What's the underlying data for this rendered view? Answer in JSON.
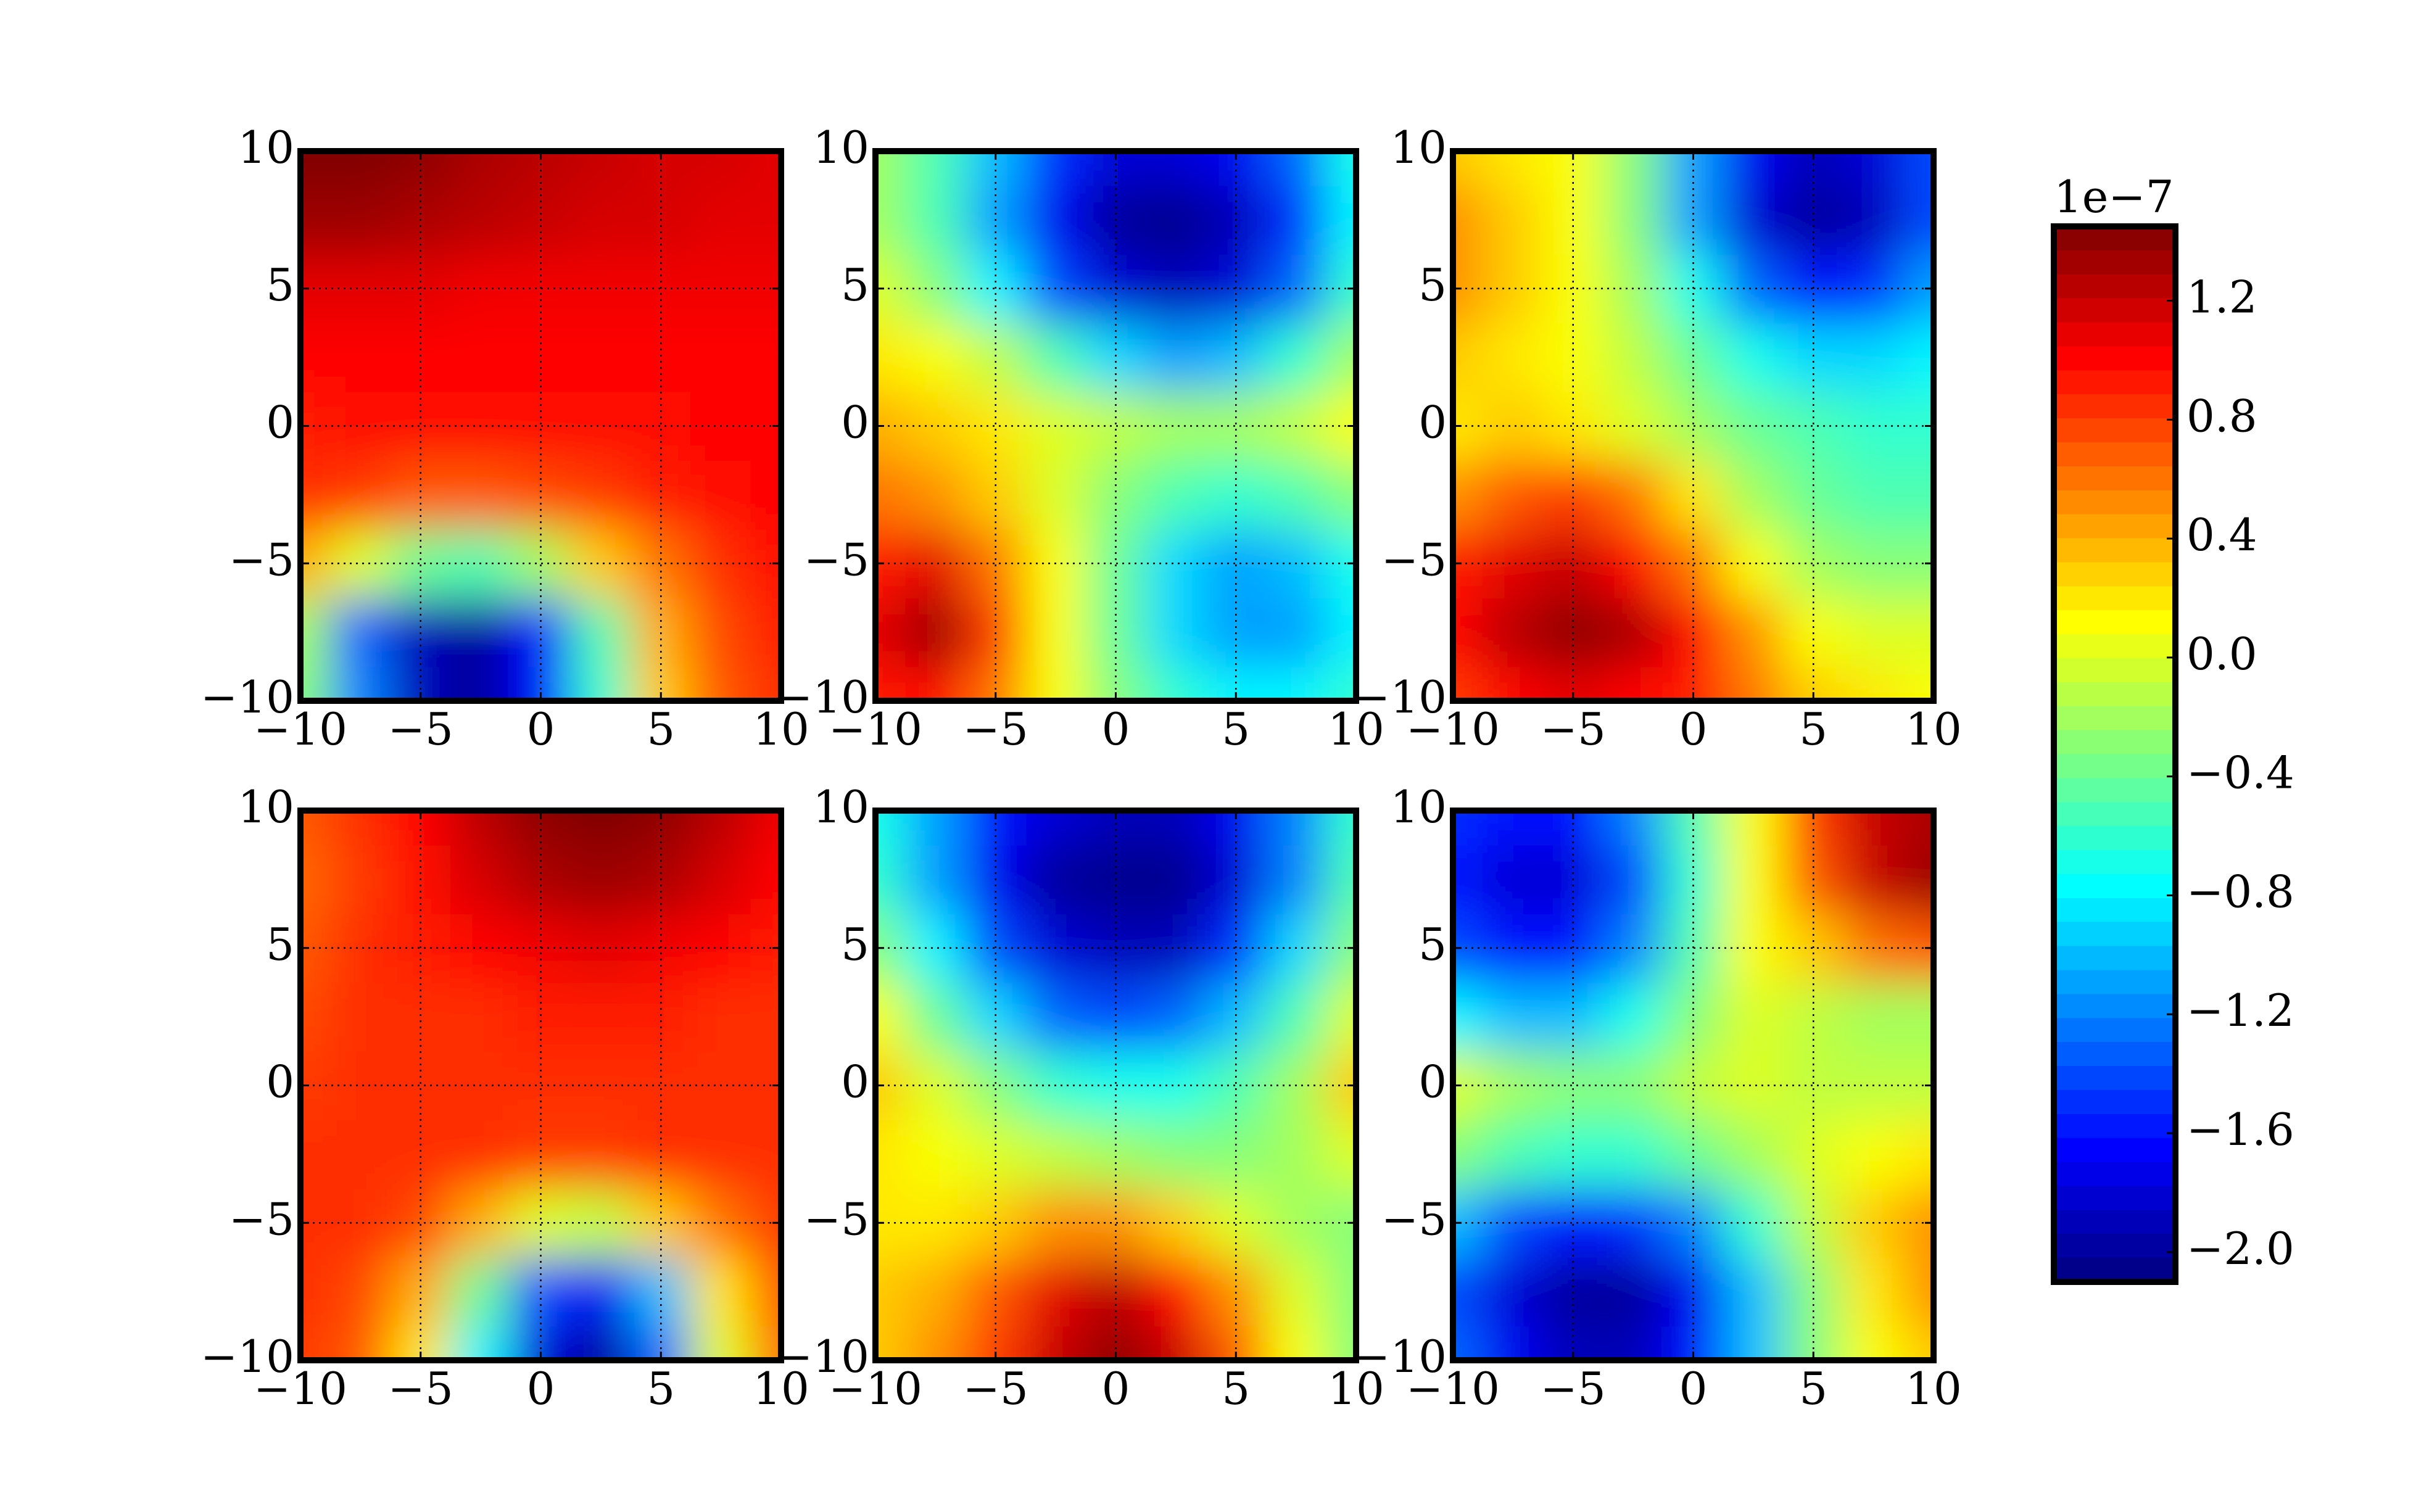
{
  "chart_data": [
    {
      "type": "contour",
      "colormap": "jet",
      "grid": true,
      "x": [
        -10,
        -7.5,
        -5,
        -2.5,
        0,
        2.5,
        5,
        7.5,
        10
      ],
      "y": [
        -10,
        -7.5,
        -5,
        -2.5,
        0,
        2.5,
        5,
        7.5,
        10
      ],
      "z": [
        [
          -0.3,
          -1.2,
          -1.9,
          -2.0,
          -1.6,
          -0.6,
          0.3,
          0.7,
          0.85
        ],
        [
          -0.2,
          -1.3,
          -1.9,
          -2.0,
          -1.6,
          -0.5,
          0.4,
          0.75,
          0.9
        ],
        [
          0.4,
          0.0,
          -0.4,
          -0.5,
          -0.2,
          0.3,
          0.6,
          0.85,
          0.95
        ],
        [
          0.85,
          0.8,
          0.7,
          0.7,
          0.75,
          0.8,
          0.9,
          0.95,
          1.0
        ],
        [
          0.9,
          0.95,
          0.95,
          0.95,
          0.95,
          0.95,
          0.95,
          1.0,
          1.0
        ],
        [
          1.0,
          1.0,
          1.0,
          1.0,
          1.0,
          1.0,
          1.0,
          1.0,
          1.0
        ],
        [
          1.1,
          1.1,
          1.1,
          1.05,
          1.05,
          1.05,
          1.05,
          1.05,
          1.05
        ],
        [
          1.35,
          1.35,
          1.3,
          1.25,
          1.2,
          1.15,
          1.15,
          1.1,
          1.1
        ],
        [
          1.45,
          1.45,
          1.4,
          1.3,
          1.25,
          1.2,
          1.15,
          1.15,
          1.1
        ]
      ],
      "xlim": [
        -10,
        10
      ],
      "ylim": [
        -10,
        10
      ],
      "xticks": [
        {
          "value": -10,
          "label": "−10"
        },
        {
          "value": -5,
          "label": "−5"
        },
        0,
        5,
        10
      ],
      "yticks": [
        {
          "value": -10,
          "label": "−10"
        },
        {
          "value": -5,
          "label": "−5"
        },
        0,
        5,
        10
      ]
    },
    {
      "type": "contour",
      "colormap": "jet",
      "grid": true,
      "x": [
        -10,
        -7.5,
        -5,
        -2.5,
        0,
        2.5,
        5,
        7.5,
        10
      ],
      "y": [
        -10,
        -7.5,
        -5,
        -2.5,
        0,
        2.5,
        5,
        7.5,
        10
      ],
      "z": [
        [
          0.9,
          1.0,
          0.6,
          0.1,
          -0.3,
          -0.6,
          -0.8,
          -0.8,
          -0.6
        ],
        [
          1.1,
          1.35,
          0.8,
          0.1,
          -0.4,
          -0.9,
          -1.1,
          -1.1,
          -0.8
        ],
        [
          0.9,
          1.1,
          0.6,
          0.1,
          -0.4,
          -0.9,
          -1.1,
          -1.0,
          -0.7
        ],
        [
          0.6,
          0.5,
          0.3,
          0.0,
          -0.3,
          -0.5,
          -0.6,
          -0.5,
          -0.3
        ],
        [
          0.4,
          0.3,
          0.2,
          0.0,
          -0.1,
          -0.2,
          -0.2,
          -0.1,
          0.1
        ],
        [
          0.2,
          0.1,
          -0.1,
          -0.5,
          -0.9,
          -1.1,
          -1.0,
          -0.6,
          -0.2
        ],
        [
          0.0,
          -0.3,
          -0.8,
          -1.4,
          -1.8,
          -1.9,
          -1.8,
          -1.3,
          -0.6
        ],
        [
          -0.2,
          -0.5,
          -1.1,
          -1.7,
          -2.0,
          -2.05,
          -1.9,
          -1.5,
          -0.8
        ],
        [
          -0.2,
          -0.5,
          -1.0,
          -1.5,
          -1.8,
          -1.8,
          -1.7,
          -1.3,
          -0.7
        ]
      ],
      "xlim": [
        -10,
        10
      ],
      "ylim": [
        -10,
        10
      ],
      "xticks": [
        {
          "value": -10,
          "label": "−10"
        },
        {
          "value": -5,
          "label": "−5"
        },
        0,
        5,
        10
      ],
      "yticks": [
        {
          "value": -10,
          "label": "−10"
        },
        {
          "value": -5,
          "label": "−5"
        },
        0,
        5,
        10
      ]
    },
    {
      "type": "contour",
      "colormap": "jet",
      "grid": true,
      "x": [
        -10,
        -7.5,
        -5,
        -2.5,
        0,
        2.5,
        5,
        7.5,
        10
      ],
      "y": [
        -10,
        -7.5,
        -5,
        -2.5,
        0,
        2.5,
        5,
        7.5,
        10
      ],
      "z": [
        [
          0.8,
          1.0,
          1.1,
          1.0,
          0.9,
          0.6,
          0.3,
          0.2,
          0.1
        ],
        [
          1.0,
          1.25,
          1.4,
          1.3,
          1.0,
          0.5,
          0.1,
          0.0,
          0.0
        ],
        [
          0.9,
          1.1,
          1.2,
          1.0,
          0.6,
          0.1,
          -0.2,
          -0.3,
          -0.3
        ],
        [
          0.5,
          0.7,
          0.8,
          0.6,
          0.2,
          -0.2,
          -0.4,
          -0.5,
          -0.5
        ],
        [
          0.2,
          0.3,
          0.2,
          0.0,
          -0.2,
          -0.4,
          -0.5,
          -0.6,
          -0.6
        ],
        [
          0.3,
          0.2,
          0.1,
          -0.1,
          -0.4,
          -0.7,
          -0.9,
          -0.9,
          -0.8
        ],
        [
          0.5,
          0.3,
          0.1,
          -0.2,
          -0.7,
          -1.3,
          -1.6,
          -1.5,
          -1.1
        ],
        [
          0.5,
          0.3,
          0.1,
          -0.3,
          -1.1,
          -1.8,
          -2.0,
          -1.9,
          -1.4
        ],
        [
          0.3,
          0.2,
          0.1,
          -0.3,
          -1.1,
          -1.7,
          -1.9,
          -1.8,
          -1.4
        ]
      ],
      "xlim": [
        -10,
        10
      ],
      "ylim": [
        -10,
        10
      ],
      "xticks": [
        {
          "value": -10,
          "label": "−10"
        },
        {
          "value": -5,
          "label": "−5"
        },
        0,
        5,
        10
      ],
      "yticks": [
        {
          "value": -10,
          "label": "−10"
        },
        {
          "value": -5,
          "label": "−5"
        },
        0,
        5,
        10
      ]
    },
    {
      "type": "contour",
      "colormap": "jet",
      "grid": true,
      "x": [
        -10,
        -7.5,
        -5,
        -2.5,
        0,
        2.5,
        5,
        7.5,
        10
      ],
      "y": [
        -10,
        -7.5,
        -5,
        -2.5,
        0,
        2.5,
        5,
        7.5,
        10
      ],
      "z": [
        [
          0.8,
          0.7,
          0.2,
          -0.8,
          -1.8,
          -2.0,
          -1.3,
          0.0,
          0.6
        ],
        [
          0.85,
          0.75,
          0.4,
          -0.4,
          -1.4,
          -1.7,
          -1.0,
          0.2,
          0.7
        ],
        [
          0.85,
          0.85,
          0.75,
          0.4,
          0.0,
          -0.1,
          0.3,
          0.6,
          0.8
        ],
        [
          0.85,
          0.85,
          0.85,
          0.85,
          0.8,
          0.8,
          0.85,
          0.85,
          0.85
        ],
        [
          0.8,
          0.85,
          0.85,
          0.85,
          0.85,
          0.85,
          0.85,
          0.85,
          0.85
        ],
        [
          0.75,
          0.85,
          0.85,
          0.85,
          0.9,
          0.9,
          0.9,
          0.85,
          0.85
        ],
        [
          0.7,
          0.85,
          0.9,
          1.0,
          1.05,
          1.1,
          1.05,
          1.0,
          0.9
        ],
        [
          0.65,
          0.8,
          0.95,
          1.15,
          1.3,
          1.35,
          1.3,
          1.15,
          1.0
        ],
        [
          0.7,
          0.85,
          1.0,
          1.25,
          1.4,
          1.45,
          1.4,
          1.25,
          1.05
        ]
      ],
      "xlim": [
        -10,
        10
      ],
      "ylim": [
        -10,
        10
      ],
      "xticks": [
        {
          "value": -10,
          "label": "−10"
        },
        {
          "value": -5,
          "label": "−5"
        },
        0,
        5,
        10
      ],
      "yticks": [
        {
          "value": -10,
          "label": "−10"
        },
        {
          "value": -5,
          "label": "−5"
        },
        0,
        5,
        10
      ]
    },
    {
      "type": "contour",
      "colormap": "jet",
      "grid": true,
      "x": [
        -10,
        -7.5,
        -5,
        -2.5,
        0,
        2.5,
        5,
        7.5,
        10
      ],
      "y": [
        -10,
        -7.5,
        -5,
        -2.5,
        0,
        2.5,
        5,
        7.5,
        10
      ],
      "z": [
        [
          0.3,
          0.5,
          0.8,
          1.2,
          1.4,
          1.2,
          0.7,
          0.1,
          -0.3
        ],
        [
          0.3,
          0.4,
          0.7,
          1.1,
          1.25,
          1.0,
          0.5,
          0.0,
          -0.3
        ],
        [
          0.2,
          0.2,
          0.3,
          0.5,
          0.5,
          0.3,
          0.0,
          -0.2,
          -0.3
        ],
        [
          0.2,
          0.1,
          0.0,
          -0.1,
          -0.2,
          -0.3,
          -0.3,
          -0.2,
          0.0
        ],
        [
          0.3,
          0.0,
          -0.3,
          -0.6,
          -0.7,
          -0.7,
          -0.5,
          -0.2,
          0.3
        ],
        [
          0.1,
          -0.4,
          -0.9,
          -1.3,
          -1.4,
          -1.3,
          -1.0,
          -0.5,
          0.0
        ],
        [
          -0.3,
          -0.8,
          -1.4,
          -1.8,
          -1.9,
          -1.9,
          -1.5,
          -0.9,
          -0.3
        ],
        [
          -0.6,
          -1.1,
          -1.7,
          -2.0,
          -2.05,
          -2.05,
          -1.8,
          -1.2,
          -0.5
        ],
        [
          -0.7,
          -1.1,
          -1.6,
          -1.8,
          -1.9,
          -1.9,
          -1.7,
          -1.2,
          -0.6
        ]
      ],
      "xlim": [
        -10,
        10
      ],
      "ylim": [
        -10,
        10
      ],
      "xticks": [
        {
          "value": -10,
          "label": "−10"
        },
        {
          "value": -5,
          "label": "−5"
        },
        0,
        5,
        10
      ],
      "yticks": [
        {
          "value": -10,
          "label": "−10"
        },
        {
          "value": -5,
          "label": "−5"
        },
        0,
        5,
        10
      ]
    },
    {
      "type": "contour",
      "colormap": "jet",
      "grid": true,
      "x": [
        -10,
        -7.5,
        -5,
        -2.5,
        0,
        2.5,
        5,
        7.5,
        10
      ],
      "y": [
        -10,
        -7.5,
        -5,
        -2.5,
        0,
        2.5,
        5,
        7.5,
        10
      ],
      "z": [
        [
          -1.3,
          -1.7,
          -1.9,
          -1.9,
          -1.6,
          -1.0,
          -0.3,
          0.1,
          0.3
        ],
        [
          -1.4,
          -1.8,
          -2.0,
          -2.0,
          -1.7,
          -1.0,
          -0.3,
          0.2,
          0.5
        ],
        [
          -1.0,
          -1.4,
          -1.6,
          -1.5,
          -1.2,
          -0.6,
          -0.1,
          0.3,
          0.5
        ],
        [
          -0.3,
          -0.5,
          -0.6,
          -0.6,
          -0.4,
          -0.2,
          0.0,
          0.1,
          0.2
        ],
        [
          0.0,
          -0.2,
          -0.3,
          -0.3,
          -0.1,
          0.0,
          -0.1,
          -0.1,
          -0.1
        ],
        [
          -0.8,
          -1.0,
          -1.0,
          -0.7,
          -0.3,
          0.0,
          -0.1,
          -0.2,
          -0.2
        ],
        [
          -1.4,
          -1.6,
          -1.6,
          -1.2,
          -0.5,
          0.1,
          0.3,
          0.6,
          0.7
        ],
        [
          -1.6,
          -1.8,
          -1.8,
          -1.4,
          -0.6,
          0.1,
          0.7,
          1.2,
          1.35
        ],
        [
          -1.5,
          -1.6,
          -1.6,
          -1.2,
          -0.5,
          0.1,
          0.8,
          1.2,
          1.3
        ]
      ],
      "xlim": [
        -10,
        10
      ],
      "ylim": [
        -10,
        10
      ],
      "xticks": [
        {
          "value": -10,
          "label": "−10"
        },
        {
          "value": -5,
          "label": "−5"
        },
        0,
        5,
        10
      ],
      "yticks": [
        {
          "value": -10,
          "label": "−10"
        },
        {
          "value": -5,
          "label": "−5"
        },
        0,
        5,
        10
      ]
    },
    {
      "type": "colorbar",
      "colormap": "jet",
      "label": "1e−7",
      "clim": [
        -2.1,
        1.45
      ],
      "ticks": [
        {
          "value": -2.0,
          "label": "−2.0"
        },
        {
          "value": -1.6,
          "label": "−1.6"
        },
        {
          "value": -1.2,
          "label": "−1.2"
        },
        {
          "value": -0.8,
          "label": "−0.8"
        },
        {
          "value": -0.4,
          "label": "−0.4"
        },
        {
          "value": 0,
          "label": "0.0"
        },
        0.4,
        0.8,
        1.2
      ]
    }
  ]
}
